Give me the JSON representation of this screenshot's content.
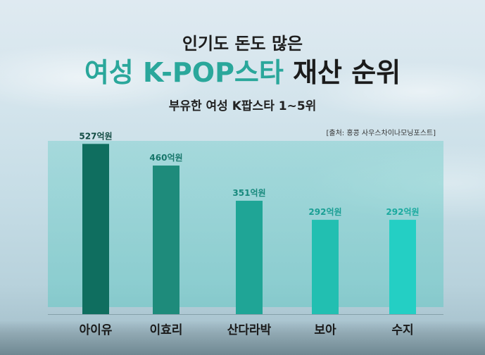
{
  "header": {
    "line1": "인기도 돈도 많은",
    "title_accent": "여성 K-POP스타",
    "title_rest": "재산 순위",
    "subtitle": "부유한 여성 K팝스타 1~5위",
    "source": "[출처: 홍콩 사우스차이나모닝포스트]"
  },
  "chart_data": {
    "type": "bar",
    "categories": [
      "아이유",
      "이효리",
      "산다라박",
      "보아",
      "수지"
    ],
    "values": [
      527,
      460,
      351,
      292,
      292
    ],
    "value_labels": [
      "527억원",
      "460억원",
      "351억원",
      "292억원",
      "292억원"
    ],
    "unit": "억원",
    "ylim": [
      0,
      580
    ],
    "grid": false,
    "colors": [
      "#0f6e5f",
      "#1e8b7b",
      "#1fa596",
      "#22bfb1",
      "#24cfc4"
    ],
    "label_colors": [
      "#124c43",
      "#16766a",
      "#17897d",
      "#1a9f94",
      "#1aaa9f"
    ]
  }
}
